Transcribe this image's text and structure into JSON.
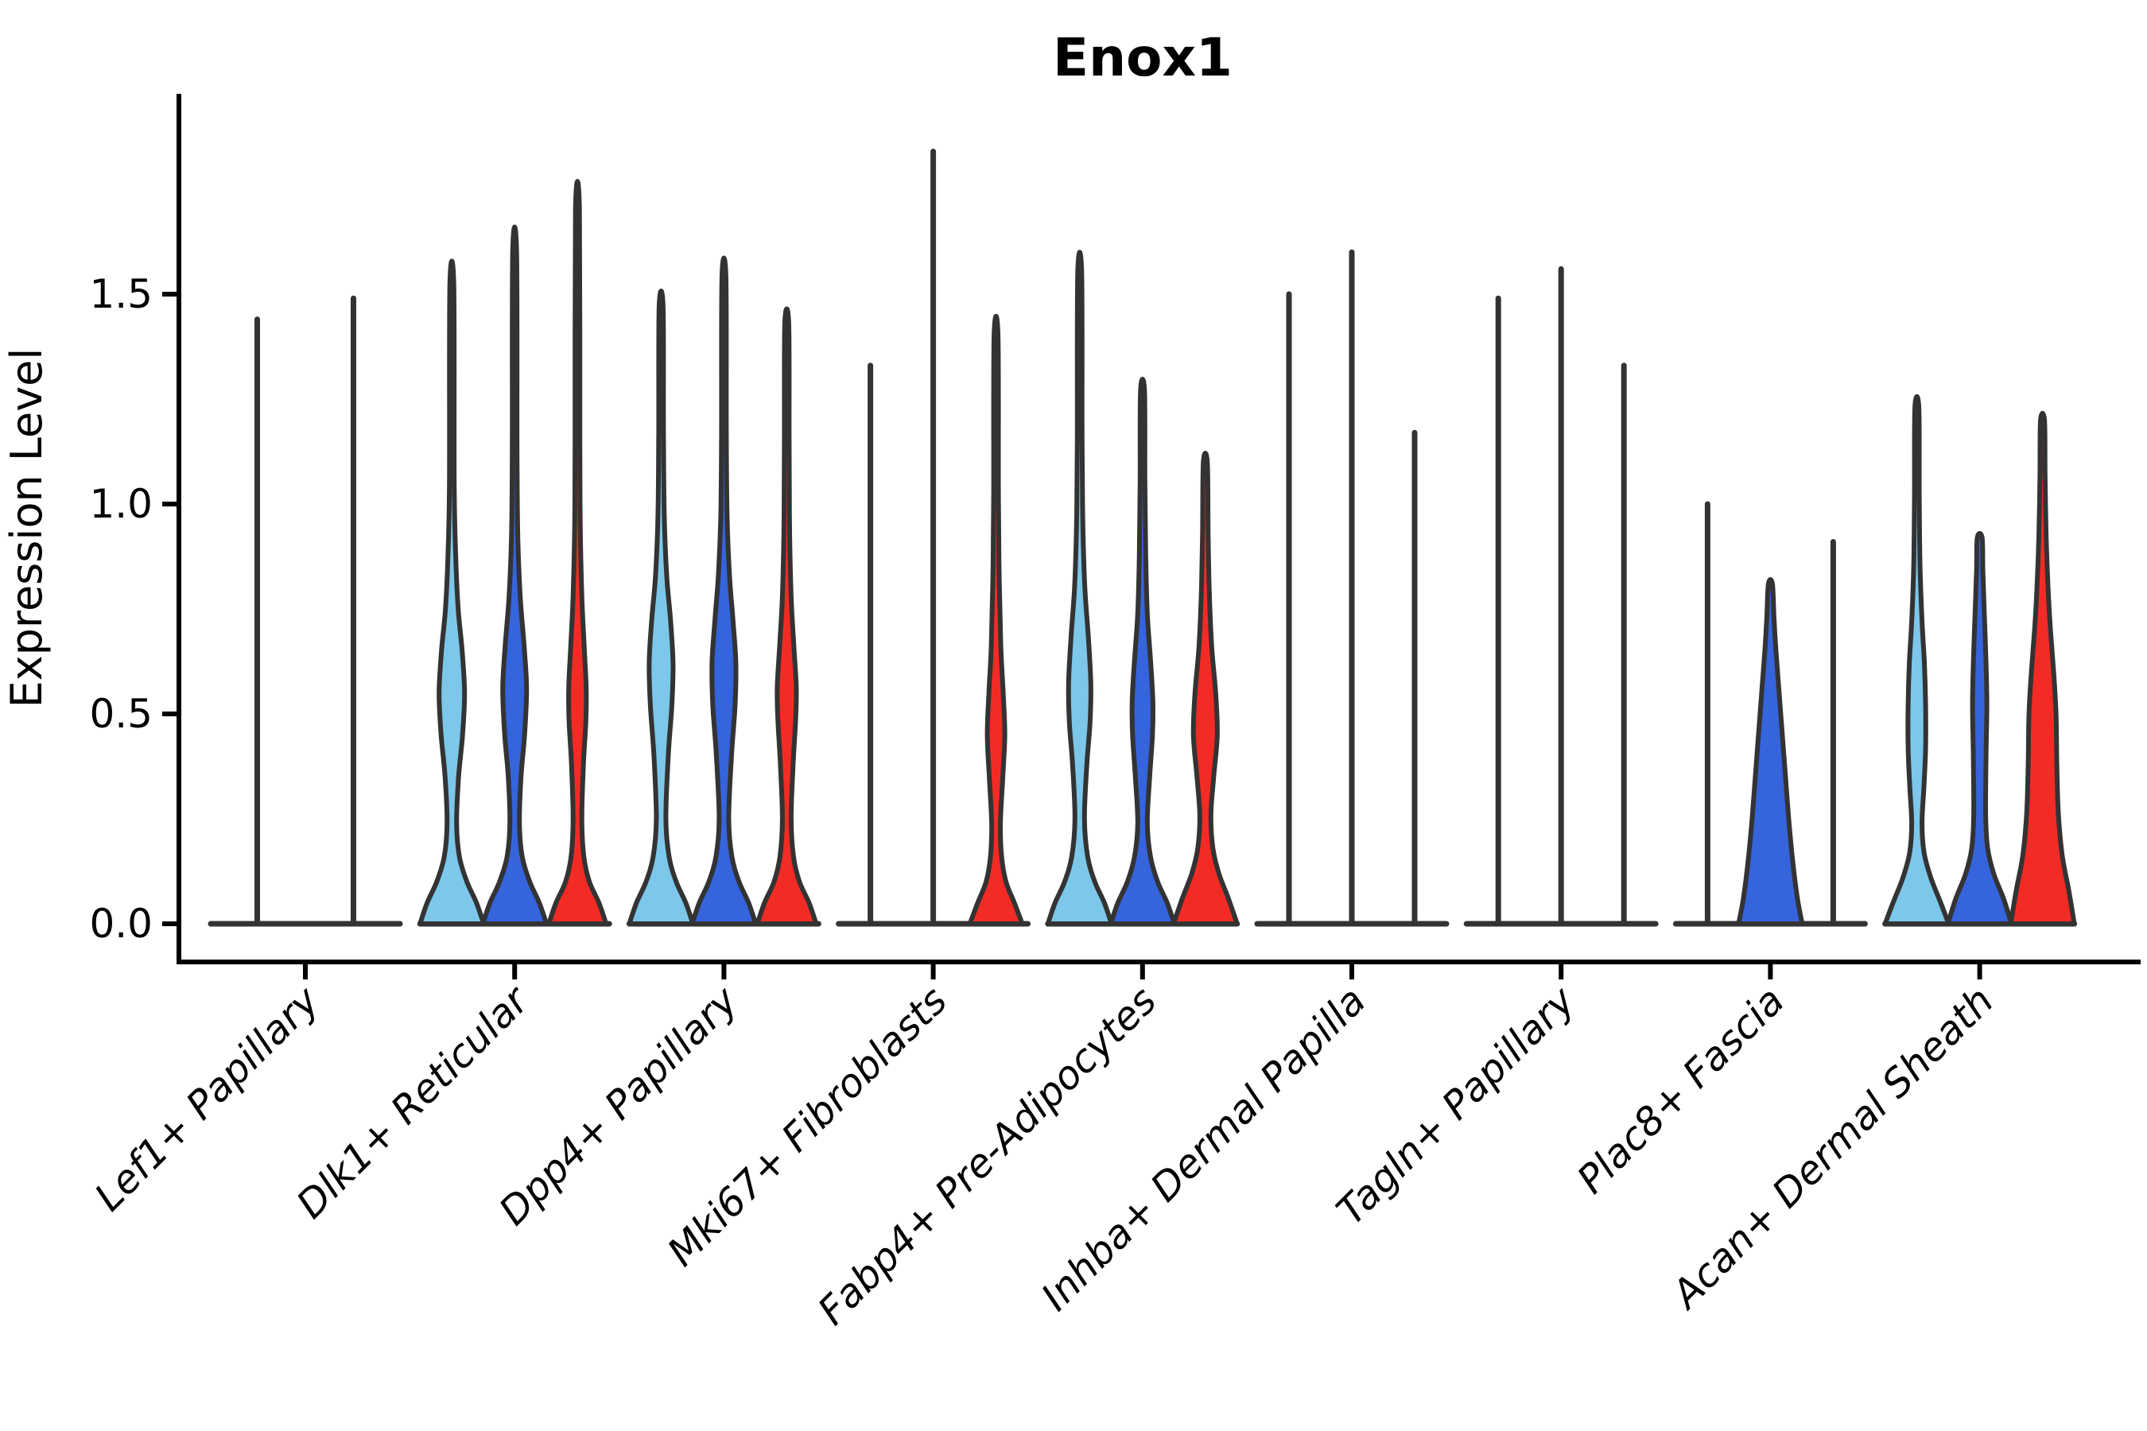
{
  "title": "Enox1",
  "y_axis": {
    "label": "Expression Level",
    "ticks": [
      "0.0",
      "0.5",
      "1.0",
      "1.5"
    ],
    "tick_values": [
      0.0,
      0.5,
      1.0,
      1.5
    ]
  },
  "colors": {
    "light_blue": "#7CC7EA",
    "dark_blue": "#3564DC",
    "red": "#F32B25",
    "violin_outline": "#333333",
    "axis": "#000000",
    "background": "#ffffff"
  },
  "chart_data": {
    "type": "violin",
    "title": "Enox1",
    "xlabel": "",
    "ylabel": "Expression Level",
    "ylim": [
      0,
      1.95
    ],
    "grid": false,
    "legend": "none",
    "split_colors": {
      "lightblue": "#7CC7EA",
      "darkblue": "#3564DC",
      "red": "#F32B25"
    },
    "categories": [
      "Lef1+ Papillary",
      "Dlk1+ Reticular",
      "Dpp4+ Papillary",
      "Mki67+ Fibroblasts",
      "Fabp4+ Pre-Adipocytes",
      "Inhba+ Dermal Papilla",
      "Tagln+ Papillary",
      "Plac8+ Fascia",
      "Acan+ Dermal Sheath"
    ],
    "groups": [
      {
        "label": "Lef1+ Papillary",
        "violins": [
          {
            "split": "lightblue",
            "kind": "spike",
            "max": 1.44
          },
          {
            "split": "darkblue",
            "kind": "spike",
            "max": 1.49
          }
        ]
      },
      {
        "label": "Dlk1+ Reticular",
        "violins": [
          {
            "split": "lightblue",
            "kind": "violin",
            "max": 1.52,
            "profile": [
              [
                0,
                40
              ],
              [
                0.05,
                31
              ],
              [
                0.1,
                19
              ],
              [
                0.16,
                9.5
              ],
              [
                0.24,
                6
              ],
              [
                0.35,
                8.5
              ],
              [
                0.45,
                13.5
              ],
              [
                0.55,
                16
              ],
              [
                0.65,
                13
              ],
              [
                0.75,
                8
              ],
              [
                0.87,
                5
              ],
              [
                1.05,
                3
              ],
              [
                1.52,
                2.5
              ]
            ]
          },
          {
            "split": "darkblue",
            "kind": "violin",
            "max": 1.6,
            "profile": [
              [
                0,
                40
              ],
              [
                0.05,
                31
              ],
              [
                0.1,
                19
              ],
              [
                0.16,
                9.5
              ],
              [
                0.24,
                6
              ],
              [
                0.35,
                8
              ],
              [
                0.45,
                12.5
              ],
              [
                0.56,
                15
              ],
              [
                0.66,
                12
              ],
              [
                0.78,
                7
              ],
              [
                0.92,
                4
              ],
              [
                1.12,
                3
              ],
              [
                1.6,
                2.5
              ]
            ]
          },
          {
            "split": "red",
            "kind": "violin",
            "max": 1.7,
            "profile": [
              [
                0,
                36
              ],
              [
                0.05,
                27
              ],
              [
                0.1,
                15
              ],
              [
                0.16,
                8
              ],
              [
                0.25,
                5.5
              ],
              [
                0.38,
                7.5
              ],
              [
                0.48,
                10.5
              ],
              [
                0.56,
                11
              ],
              [
                0.66,
                8.5
              ],
              [
                0.78,
                5.5
              ],
              [
                0.95,
                3.5
              ],
              [
                1.15,
                3
              ],
              [
                1.7,
                2.5
              ]
            ]
          }
        ]
      },
      {
        "label": "Dpp4+ Papillary",
        "violins": [
          {
            "split": "lightblue",
            "kind": "violin",
            "max": 1.47,
            "profile": [
              [
                0,
                40
              ],
              [
                0.05,
                31
              ],
              [
                0.1,
                19
              ],
              [
                0.16,
                10
              ],
              [
                0.25,
                6
              ],
              [
                0.4,
                9
              ],
              [
                0.52,
                13.5
              ],
              [
                0.62,
                15
              ],
              [
                0.72,
                12
              ],
              [
                0.83,
                7
              ],
              [
                0.97,
                4
              ],
              [
                1.17,
                3
              ],
              [
                1.47,
                2.5
              ]
            ]
          },
          {
            "split": "darkblue",
            "kind": "violin",
            "max": 1.54,
            "profile": [
              [
                0,
                40
              ],
              [
                0.05,
                31
              ],
              [
                0.1,
                19
              ],
              [
                0.16,
                10
              ],
              [
                0.25,
                6
              ],
              [
                0.4,
                9.5
              ],
              [
                0.52,
                14
              ],
              [
                0.62,
                15
              ],
              [
                0.72,
                11.5
              ],
              [
                0.83,
                7
              ],
              [
                0.97,
                4
              ],
              [
                1.17,
                3
              ],
              [
                1.54,
                2.5
              ]
            ]
          },
          {
            "split": "red",
            "kind": "violin",
            "max": 1.43,
            "profile": [
              [
                0,
                37
              ],
              [
                0.05,
                28
              ],
              [
                0.1,
                16
              ],
              [
                0.16,
                8.5
              ],
              [
                0.25,
                5.5
              ],
              [
                0.38,
                8
              ],
              [
                0.48,
                11
              ],
              [
                0.56,
                12
              ],
              [
                0.66,
                9
              ],
              [
                0.78,
                5.5
              ],
              [
                0.95,
                3.5
              ],
              [
                1.15,
                3
              ],
              [
                1.43,
                2.5
              ]
            ]
          }
        ]
      },
      {
        "label": "Mki67+ Fibroblasts",
        "violins": [
          {
            "split": "lightblue",
            "kind": "spike",
            "max": 1.33
          },
          {
            "split": "darkblue",
            "kind": "spike",
            "max": 1.84
          },
          {
            "split": "red",
            "kind": "violin",
            "max": 1.4,
            "profile": [
              [
                0,
                33
              ],
              [
                0.05,
                23
              ],
              [
                0.1,
                12.5
              ],
              [
                0.16,
                7
              ],
              [
                0.24,
                5.5
              ],
              [
                0.35,
                8.5
              ],
              [
                0.45,
                11
              ],
              [
                0.55,
                9
              ],
              [
                0.66,
                6
              ],
              [
                0.82,
                4
              ],
              [
                1.02,
                3
              ],
              [
                1.4,
                2.5
              ]
            ]
          }
        ]
      },
      {
        "label": "Fabp4+ Pre-Adipocytes",
        "violins": [
          {
            "split": "lightblue",
            "kind": "violin",
            "max": 1.55,
            "profile": [
              [
                0,
                40
              ],
              [
                0.05,
                31
              ],
              [
                0.1,
                19
              ],
              [
                0.16,
                10
              ],
              [
                0.25,
                6
              ],
              [
                0.38,
                9
              ],
              [
                0.48,
                13
              ],
              [
                0.57,
                14
              ],
              [
                0.68,
                11
              ],
              [
                0.8,
                6.5
              ],
              [
                0.95,
                4
              ],
              [
                1.15,
                3
              ],
              [
                1.55,
                2.5
              ]
            ]
          },
          {
            "split": "darkblue",
            "kind": "violin",
            "max": 1.27,
            "profile": [
              [
                0,
                40
              ],
              [
                0.05,
                31
              ],
              [
                0.1,
                19
              ],
              [
                0.16,
                10
              ],
              [
                0.24,
                6
              ],
              [
                0.35,
                9
              ],
              [
                0.45,
                12.5
              ],
              [
                0.53,
                13
              ],
              [
                0.63,
                10
              ],
              [
                0.74,
                6
              ],
              [
                0.88,
                4
              ],
              [
                1.05,
                3
              ],
              [
                1.27,
                2.5
              ]
            ]
          },
          {
            "split": "red",
            "kind": "violin",
            "max": 1.1,
            "profile": [
              [
                0,
                40
              ],
              [
                0.06,
                29
              ],
              [
                0.12,
                17
              ],
              [
                0.18,
                9.5
              ],
              [
                0.26,
                7
              ],
              [
                0.35,
                10.5
              ],
              [
                0.45,
                15
              ],
              [
                0.55,
                13
              ],
              [
                0.66,
                8
              ],
              [
                0.79,
                5
              ],
              [
                0.93,
                3.5
              ],
              [
                1.1,
                2.5
              ]
            ]
          }
        ]
      },
      {
        "label": "Inhba+ Dermal Papilla",
        "violins": [
          {
            "split": "lightblue",
            "kind": "spike",
            "max": 1.5
          },
          {
            "split": "darkblue",
            "kind": "spike",
            "max": 1.6
          },
          {
            "split": "red",
            "kind": "spike",
            "max": 1.17
          }
        ]
      },
      {
        "label": "Tagln+ Papillary",
        "violins": [
          {
            "split": "lightblue",
            "kind": "spike",
            "max": 1.49
          },
          {
            "split": "darkblue",
            "kind": "spike",
            "max": 1.56
          },
          {
            "split": "red",
            "kind": "spike",
            "max": 1.33
          }
        ]
      },
      {
        "label": "Plac8+ Fascia",
        "violins": [
          {
            "split": "lightblue",
            "kind": "spike",
            "max": 1.0
          },
          {
            "split": "darkblue",
            "kind": "violin",
            "max": 0.81,
            "profile": [
              [
                0,
                40
              ],
              [
                0.06,
                34
              ],
              [
                0.15,
                28
              ],
              [
                0.25,
                23
              ],
              [
                0.35,
                19
              ],
              [
                0.45,
                15
              ],
              [
                0.55,
                11
              ],
              [
                0.65,
                7
              ],
              [
                0.73,
                4.5
              ],
              [
                0.81,
                2.5
              ]
            ]
          },
          {
            "split": "red",
            "kind": "spike",
            "max": 0.91
          }
        ]
      },
      {
        "label": "Acan+ Dermal Sheath",
        "violins": [
          {
            "split": "lightblue",
            "kind": "violin",
            "max": 1.23,
            "profile": [
              [
                0,
                40
              ],
              [
                0.05,
                30
              ],
              [
                0.11,
                17.5
              ],
              [
                0.17,
                9
              ],
              [
                0.24,
                6.5
              ],
              [
                0.33,
                9
              ],
              [
                0.42,
                11
              ],
              [
                0.52,
                11
              ],
              [
                0.62,
                9.5
              ],
              [
                0.72,
                6.5
              ],
              [
                0.85,
                4
              ],
              [
                1.02,
                3
              ],
              [
                1.23,
                2.5
              ]
            ]
          },
          {
            "split": "darkblue",
            "kind": "violin",
            "max": 0.92,
            "profile": [
              [
                0,
                40
              ],
              [
                0.06,
                30
              ],
              [
                0.12,
                17.5
              ],
              [
                0.18,
                10
              ],
              [
                0.26,
                7.5
              ],
              [
                0.4,
                8
              ],
              [
                0.52,
                9
              ],
              [
                0.62,
                8
              ],
              [
                0.73,
                6
              ],
              [
                0.84,
                4
              ],
              [
                0.92,
                3
              ]
            ]
          },
          {
            "split": "red",
            "kind": "violin",
            "max": 1.2,
            "profile": [
              [
                0,
                40
              ],
              [
                0.08,
                33
              ],
              [
                0.16,
                25
              ],
              [
                0.26,
                20
              ],
              [
                0.38,
                18
              ],
              [
                0.5,
                17
              ],
              [
                0.6,
                14
              ],
              [
                0.7,
                10
              ],
              [
                0.8,
                7
              ],
              [
                0.93,
                4.5
              ],
              [
                1.07,
                3.2
              ],
              [
                1.2,
                2.5
              ]
            ]
          }
        ]
      }
    ]
  }
}
